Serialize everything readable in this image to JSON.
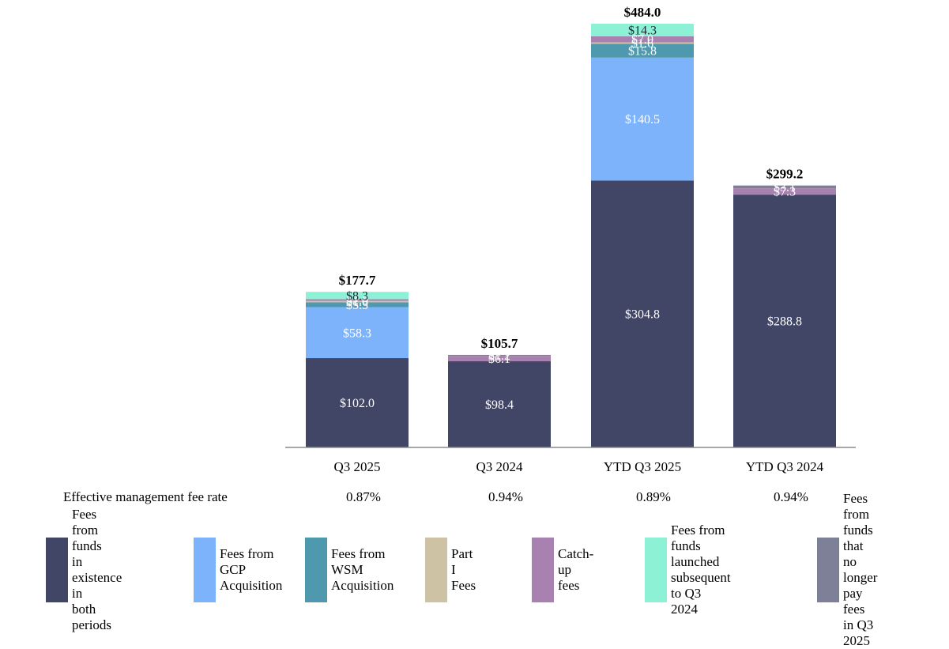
{
  "chart_data": {
    "type": "stacked-bar",
    "categories": [
      "Q3 2025",
      "Q3 2024",
      "YTD Q3 2025",
      "YTD Q3 2024"
    ],
    "ylim": [
      0,
      484
    ],
    "series": [
      {
        "name": "Fees from funds in existence in both periods",
        "color": "#414566",
        "values": [
          102.0,
          98.4,
          304.8,
          288.8
        ],
        "labels": [
          "$102.0",
          "$98.4",
          "$304.8",
          "$288.8"
        ]
      },
      {
        "name": "Fees from GCP Acquisition",
        "color": "#7db3fb",
        "values": [
          58.3,
          0,
          140.5,
          0
        ],
        "labels": [
          "$58.3",
          "",
          "$140.5",
          ""
        ]
      },
      {
        "name": "Fees from WSM Acquisition",
        "color": "#4f99ae",
        "values": [
          5.5,
          0,
          15.8,
          0
        ],
        "labels": [
          "$5.5",
          "",
          "$15.8",
          ""
        ]
      },
      {
        "name": "Part I Fees",
        "color": "#cdc3a4",
        "values": [
          1.6,
          0,
          1.6,
          0
        ],
        "labels": [
          "$1.6",
          "",
          "$1.6",
          ""
        ]
      },
      {
        "name": "Catch-up fees",
        "color": "#a881b0",
        "values": [
          2.0,
          6.1,
          7.0,
          7.3
        ],
        "labels": [
          "$2.0",
          "$6.1",
          "$7.0",
          "$7.3"
        ]
      },
      {
        "name": "Fees from funds launched subsequent to Q3 2024",
        "color": "#8df1d5",
        "values": [
          8.3,
          0,
          14.3,
          0
        ],
        "labels": [
          "$8.3",
          "",
          "$14.3",
          ""
        ]
      },
      {
        "name": "Fees from funds that no longer pay fees in Q3 2025",
        "color": "#7e8098",
        "values": [
          0,
          1.2,
          0,
          3.1
        ],
        "labels": [
          "",
          "$1.2",
          "",
          "$3.1"
        ]
      }
    ],
    "totals": [
      "$177.7",
      "$105.7",
      "$484.0",
      "$299.2"
    ]
  },
  "fee_rate": {
    "title": "Effective management fee rate",
    "values": [
      "0.87%",
      "0.94%",
      "0.89%",
      "0.94%"
    ]
  },
  "legend": [
    {
      "lines": [
        "Fees from funds",
        "in existence in",
        "both periods"
      ],
      "color": "#414566"
    },
    {
      "lines": [
        "Fees from",
        "GCP",
        "Acquisition"
      ],
      "color": "#7db3fb"
    },
    {
      "lines": [
        "Fees from",
        "WSM",
        "Acquisition"
      ],
      "color": "#4f99ae"
    },
    {
      "lines": [
        "Part I Fees"
      ],
      "color": "#cdc3a4"
    },
    {
      "lines": [
        "Catch-up",
        "fees"
      ],
      "color": "#a881b0"
    },
    {
      "lines": [
        "Fees from funds",
        "launched subsequent",
        "to Q3 2024"
      ],
      "color": "#8df1d5"
    },
    {
      "lines": [
        "Fees from funds",
        "that no longer",
        "pay fees in Q3",
        "2025"
      ],
      "color": "#7e8098"
    }
  ]
}
